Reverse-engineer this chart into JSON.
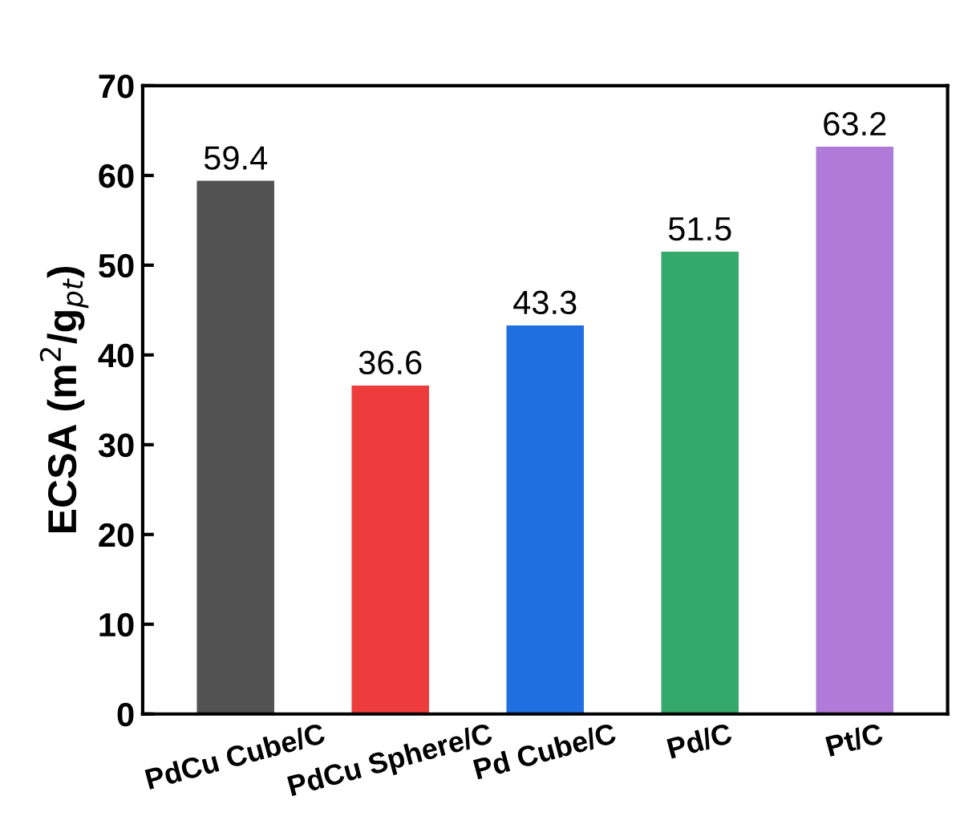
{
  "chart_data": {
    "type": "bar",
    "ylabel": "ECSA (m$^{2}$/g$_{pt}$)",
    "categories": [
      "PdCu Cube/C",
      "PdCu Sphere/C",
      "Pd Cube/C",
      "Pd/C",
      "Pt/C"
    ],
    "values": [
      59.4,
      36.6,
      43.3,
      51.5,
      63.2
    ],
    "colors": [
      "#525252",
      "#ee3b3b",
      "#1f6fe0",
      "#35a86b",
      "#b07ad8"
    ],
    "ylim": [
      0,
      70
    ],
    "yticks": [
      0,
      10,
      20,
      30,
      40,
      50,
      60,
      70
    ],
    "data_labels": true,
    "grid": false
  }
}
